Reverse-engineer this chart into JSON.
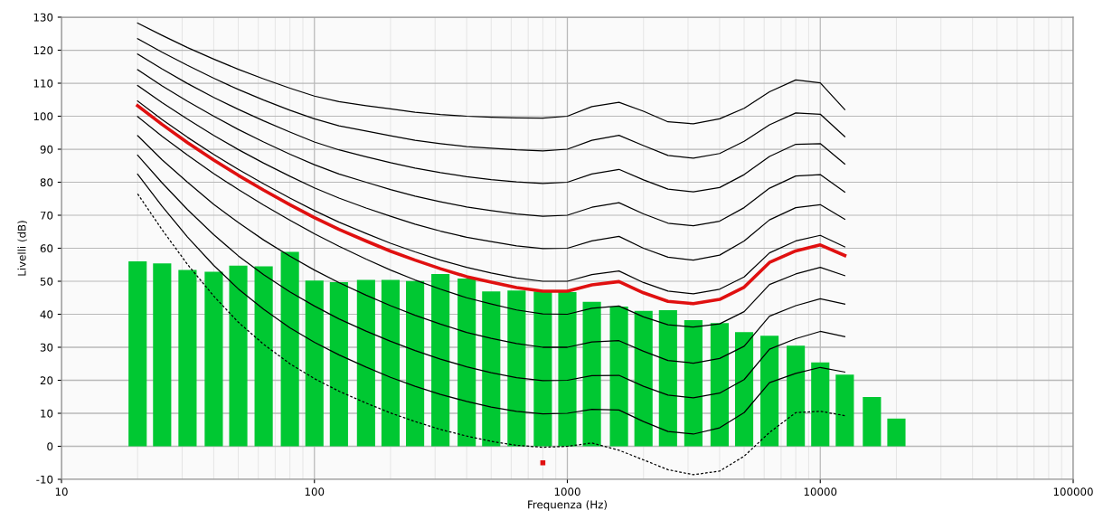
{
  "chart_data": {
    "type": "line",
    "xlabel": "Frequenza (Hz)",
    "ylabel": "Livelli (dB)",
    "log": "x",
    "grid": true,
    "marker": "none",
    "xlim": [
      10,
      100000
    ],
    "xticks": [
      10,
      100,
      1000,
      10000,
      100000
    ],
    "ylim": [
      -10,
      130
    ],
    "yticks": [
      -10,
      0,
      10,
      20,
      30,
      40,
      50,
      60,
      70,
      80,
      90,
      100,
      110,
      120,
      130
    ],
    "series": [
      {
        "type": "bar",
        "color": "#00c832",
        "x": [
          20,
          25,
          31.5,
          40,
          50,
          63,
          80,
          100,
          125,
          160,
          200,
          250,
          315,
          400,
          500,
          630,
          800,
          1000,
          1250,
          1600,
          2000,
          2500,
          3150,
          4000,
          5000,
          6300,
          8000,
          10000,
          12500,
          16000,
          20000
        ],
        "values": [
          56.0,
          55.4,
          53.4,
          52.9,
          54.7,
          54.5,
          58.9,
          50.2,
          49.7,
          50.4,
          50.4,
          50.1,
          52.2,
          50.8,
          46.9,
          47.2,
          46.9,
          46.7,
          43.8,
          42.3,
          41.0,
          41.2,
          38.2,
          37.3,
          34.6,
          33.5,
          30.5,
          25.4,
          21.7,
          14.9,
          8.4
        ]
      },
      {
        "color": "#000000",
        "line_style": "dashed",
        "x": [
          20,
          25,
          31.5,
          40,
          50,
          63,
          80,
          100,
          125,
          160,
          200,
          250,
          315,
          400,
          500,
          630,
          800,
          1000,
          1250,
          1600,
          2000,
          2500,
          3150,
          4000,
          5000,
          6300,
          8000,
          10000,
          12500
        ],
        "values": [
          76.5,
          65.6,
          55.1,
          45.5,
          37.6,
          30.9,
          25.0,
          20.5,
          16.7,
          13.1,
          10.1,
          7.5,
          5.1,
          3.1,
          1.5,
          0.3,
          -0.3,
          0,
          1.0,
          -1.2,
          -4.1,
          -7.1,
          -8.6,
          -7.5,
          -3.0,
          4.2,
          10.2,
          10.6,
          9.3
        ]
      },
      {
        "color": "#000000",
        "line_style": "solid",
        "x": [
          20,
          25,
          31.5,
          40,
          50,
          63,
          80,
          100,
          125,
          160,
          200,
          250,
          315,
          400,
          500,
          630,
          800,
          1000,
          1250,
          1600,
          2000,
          2500,
          3150,
          4000,
          5000,
          6300,
          8000,
          10000,
          12500
        ],
        "values": [
          82.4,
          72.7,
          63.4,
          54.8,
          47.7,
          41.5,
          35.9,
          31.5,
          27.7,
          24.0,
          20.9,
          18.2,
          15.7,
          13.6,
          11.9,
          10.6,
          9.8,
          10,
          11.2,
          11.0,
          7.5,
          4.5,
          3.7,
          5.6,
          10.2,
          19.3,
          22.1,
          23.9,
          22.5
        ]
      },
      {
        "color": "#000000",
        "line_style": "solid",
        "x": [
          20,
          25,
          31.5,
          40,
          50,
          63,
          80,
          100,
          125,
          160,
          200,
          250,
          315,
          400,
          500,
          630,
          800,
          1000,
          1250,
          1600,
          2000,
          2500,
          3150,
          4000,
          5000,
          6300,
          8000,
          10000,
          12500
        ],
        "values": [
          88.2,
          79.8,
          71.7,
          64.1,
          57.7,
          52.0,
          46.8,
          42.5,
          38.6,
          34.9,
          31.8,
          29.0,
          26.4,
          24.1,
          22.3,
          20.8,
          19.9,
          20,
          21.4,
          21.5,
          18.2,
          15.5,
          14.7,
          16.1,
          20.2,
          29.4,
          32.6,
          34.8,
          33.2
        ]
      },
      {
        "color": "#000000",
        "line_style": "solid",
        "x": [
          20,
          25,
          31.5,
          40,
          50,
          63,
          80,
          100,
          125,
          160,
          200,
          250,
          315,
          400,
          500,
          630,
          800,
          1000,
          1250,
          1600,
          2000,
          2500,
          3150,
          4000,
          5000,
          6300,
          8000,
          10000,
          12500
        ],
        "values": [
          94.1,
          86.8,
          80.0,
          73.3,
          67.8,
          62.5,
          57.6,
          53.4,
          49.6,
          45.8,
          42.6,
          39.7,
          37.0,
          34.5,
          32.7,
          31.1,
          30.0,
          30,
          31.6,
          32.0,
          28.8,
          26.0,
          25.2,
          26.6,
          30.3,
          39.4,
          42.6,
          44.7,
          43.1
        ]
      },
      {
        "color": "#000000",
        "line_style": "solid",
        "x": [
          20,
          25,
          31.5,
          40,
          50,
          63,
          80,
          100,
          125,
          160,
          200,
          250,
          315,
          400,
          500,
          630,
          800,
          1000,
          1250,
          1600,
          2000,
          2500,
          3150,
          4000,
          5000,
          6300,
          8000,
          10000,
          12500
        ],
        "values": [
          99.9,
          93.9,
          88.2,
          82.6,
          77.8,
          73.1,
          68.5,
          64.4,
          60.6,
          56.7,
          53.4,
          50.4,
          47.6,
          45.0,
          43.1,
          41.3,
          40.1,
          40,
          41.8,
          42.5,
          39.2,
          36.8,
          36.1,
          37.1,
          40.8,
          49.0,
          52.2,
          54.2,
          51.7
        ]
      },
      {
        "color": "#000000",
        "line_style": "solid",
        "x": [
          20,
          25,
          31.5,
          40,
          50,
          63,
          80,
          100,
          125,
          160,
          200,
          250,
          315,
          400,
          500,
          630,
          800,
          1000,
          1250,
          1600,
          2000,
          2500,
          3150,
          4000,
          5000,
          6300,
          8000,
          10000,
          12500
        ],
        "values": [
          104.6,
          99.0,
          93.6,
          88.4,
          83.9,
          79.5,
          75.2,
          71.4,
          67.9,
          64.5,
          61.5,
          58.9,
          56.4,
          54.2,
          52.5,
          51.0,
          50.0,
          50,
          52.0,
          53.1,
          49.6,
          47.0,
          46.2,
          47.6,
          51.3,
          58.6,
          62.2,
          63.9,
          60.4
        ]
      },
      {
        "color": "#000000",
        "line_style": "solid",
        "x": [
          20,
          25,
          31.5,
          40,
          50,
          63,
          80,
          100,
          125,
          160,
          200,
          250,
          315,
          400,
          500,
          630,
          800,
          1000,
          1250,
          1600,
          2000,
          2500,
          3150,
          4000,
          5000,
          6300,
          8000,
          10000,
          12500
        ],
        "values": [
          109.3,
          104.1,
          99.1,
          94.2,
          89.9,
          85.8,
          81.8,
          78.3,
          75.2,
          72.2,
          69.7,
          67.3,
          65.2,
          63.3,
          62.0,
          60.7,
          59.9,
          60,
          62.2,
          63.6,
          60.0,
          57.3,
          56.4,
          57.9,
          62.2,
          68.6,
          72.3,
          73.2,
          68.8
        ]
      },
      {
        "color": "#000000",
        "line_style": "solid",
        "x": [
          20,
          25,
          31.5,
          40,
          50,
          63,
          80,
          100,
          125,
          160,
          200,
          250,
          315,
          400,
          500,
          630,
          800,
          1000,
          1250,
          1600,
          2000,
          2500,
          3150,
          4000,
          5000,
          6300,
          8000,
          10000,
          12500
        ],
        "values": [
          114.1,
          109.2,
          104.5,
          100.0,
          96.0,
          92.2,
          88.5,
          85.3,
          82.5,
          80.0,
          77.8,
          75.8,
          74.1,
          72.5,
          71.4,
          70.4,
          69.7,
          70,
          72.4,
          73.8,
          70.4,
          67.6,
          66.8,
          68.2,
          72.3,
          78.2,
          81.9,
          82.3,
          77.0
        ]
      },
      {
        "color": "#000000",
        "line_style": "solid",
        "x": [
          20,
          25,
          31.5,
          40,
          50,
          63,
          80,
          100,
          125,
          160,
          200,
          250,
          315,
          400,
          500,
          630,
          800,
          1000,
          1250,
          1600,
          2000,
          2500,
          3150,
          4000,
          5000,
          6300,
          8000,
          10000,
          12500
        ],
        "values": [
          118.8,
          114.3,
          109.9,
          105.7,
          102.1,
          98.6,
          95.2,
          92.2,
          89.8,
          87.7,
          85.9,
          84.3,
          82.9,
          81.7,
          80.8,
          80.1,
          79.6,
          80,
          82.5,
          83.9,
          80.7,
          77.9,
          77.1,
          78.4,
          82.3,
          87.8,
          91.5,
          91.7,
          85.5
        ]
      },
      {
        "color": "#000000",
        "line_style": "solid",
        "x": [
          20,
          25,
          31.5,
          40,
          50,
          63,
          80,
          100,
          125,
          160,
          200,
          250,
          315,
          400,
          500,
          630,
          800,
          1000,
          1250,
          1600,
          2000,
          2500,
          3150,
          4000,
          5000,
          6300,
          8000,
          10000,
          12500
        ],
        "values": [
          123.5,
          119.4,
          115.4,
          111.5,
          108.1,
          104.9,
          101.8,
          99.2,
          97.1,
          95.5,
          94.1,
          92.7,
          91.7,
          90.8,
          90.3,
          89.8,
          89.5,
          90,
          92.7,
          94.2,
          91.1,
          88.1,
          87.3,
          88.7,
          92.4,
          97.4,
          101.0,
          100.6,
          93.8
        ]
      },
      {
        "color": "#000000",
        "line_style": "solid",
        "x": [
          20,
          25,
          31.5,
          40,
          50,
          63,
          80,
          100,
          125,
          160,
          200,
          250,
          315,
          400,
          500,
          630,
          800,
          1000,
          1250,
          1600,
          2000,
          2500,
          3150,
          4000,
          5000,
          6300,
          8000,
          10000,
          12500
        ],
        "values": [
          128.2,
          124.5,
          120.8,
          117.3,
          114.2,
          111.3,
          108.5,
          106.1,
          104.4,
          103.2,
          102.2,
          101.2,
          100.5,
          100.0,
          99.7,
          99.5,
          99.4,
          100,
          102.9,
          104.2,
          101.5,
          98.3,
          97.7,
          99.2,
          102.4,
          107.4,
          111.0,
          110.1,
          102.0
        ]
      },
      {
        "color": "#e01010",
        "line_style": "solid",
        "x": [
          20,
          25,
          31.5,
          40,
          50,
          63,
          80,
          100,
          125,
          160,
          200,
          250,
          315,
          400,
          500,
          630,
          800,
          1000,
          1250,
          1600,
          2000,
          2500,
          3150,
          4000,
          5000,
          6300,
          8000,
          10000,
          12500
        ],
        "values": [
          103.2,
          97.5,
          92.0,
          86.7,
          82.1,
          77.6,
          73.2,
          69.3,
          65.7,
          62.2,
          59.1,
          56.4,
          53.8,
          51.4,
          49.7,
          48.1,
          47.0,
          47.0,
          48.9,
          49.9,
          46.5,
          43.9,
          43.2,
          44.5,
          48.2,
          55.7,
          59.2,
          61.0,
          57.8
        ]
      },
      {
        "type": "scatter",
        "color": "#e01010",
        "marker": "square",
        "x": [
          800
        ],
        "values": [
          -5
        ]
      }
    ]
  }
}
